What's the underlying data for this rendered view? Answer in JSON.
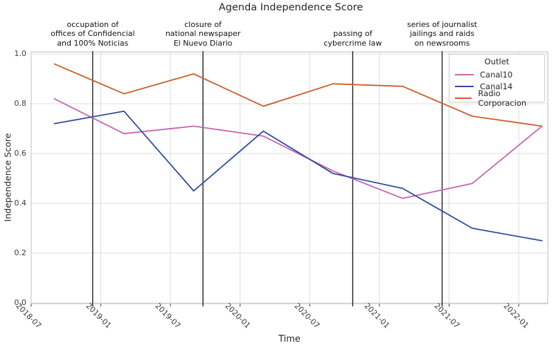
{
  "chart_data": {
    "type": "line",
    "title": "Agenda Independence Score",
    "xlabel": "Time",
    "ylabel": "Independence Score",
    "legend_title": "Outlet",
    "legend_position": "upper right",
    "grid": true,
    "x_unit": "months since 2018-07",
    "xlim": [
      0,
      44.5
    ],
    "ylim": [
      0.0,
      1.0
    ],
    "y_ticks": [
      0.0,
      0.2,
      0.4,
      0.6,
      0.8,
      1.0
    ],
    "x_ticks": [
      {
        "m": 0,
        "label": "2018-07"
      },
      {
        "m": 6,
        "label": "2019-01"
      },
      {
        "m": 12,
        "label": "2019-07"
      },
      {
        "m": 18,
        "label": "2020-01"
      },
      {
        "m": 24,
        "label": "2020-07"
      },
      {
        "m": 30,
        "label": "2021-01"
      },
      {
        "m": 36,
        "label": "2021-07"
      },
      {
        "m": 42,
        "label": "2022-01"
      }
    ],
    "x": [
      2,
      8,
      14,
      20,
      26,
      32,
      38,
      44
    ],
    "x_dates": [
      "2018-09",
      "2019-03",
      "2019-09",
      "2020-03",
      "2020-09",
      "2021-03",
      "2021-09",
      "2022-03"
    ],
    "series": [
      {
        "name": "Canal10",
        "color": "#c664b0",
        "values": [
          0.82,
          0.68,
          0.71,
          0.67,
          0.53,
          0.42,
          0.48,
          0.71
        ]
      },
      {
        "name": "Canal14",
        "color": "#2f4b9e",
        "values": [
          0.72,
          0.77,
          0.45,
          0.69,
          0.52,
          0.46,
          0.3,
          0.25
        ]
      },
      {
        "name": "Radio Corporacion",
        "color": "#cb5c2b",
        "values": [
          0.96,
          0.84,
          0.92,
          0.79,
          0.88,
          0.87,
          0.75,
          0.71
        ]
      }
    ],
    "events": [
      {
        "m": 5.3,
        "lines": [
          "occupation of",
          "offices of Confidencial",
          "and 100% Noticias"
        ]
      },
      {
        "m": 14.8,
        "lines": [
          "closure of",
          "national newspaper",
          "El Nuevo Diario"
        ]
      },
      {
        "m": 27.7,
        "lines": [
          "passing of",
          "cybercrime law"
        ]
      },
      {
        "m": 35.4,
        "lines": [
          "series of journalist",
          "jailings and raids",
          "on newsrooms"
        ]
      }
    ],
    "style": {
      "grid_color": "#dcdcdc",
      "spine_color": "#c8c8c8",
      "event_line_color": "#111111",
      "tick_color": "#333333"
    }
  }
}
